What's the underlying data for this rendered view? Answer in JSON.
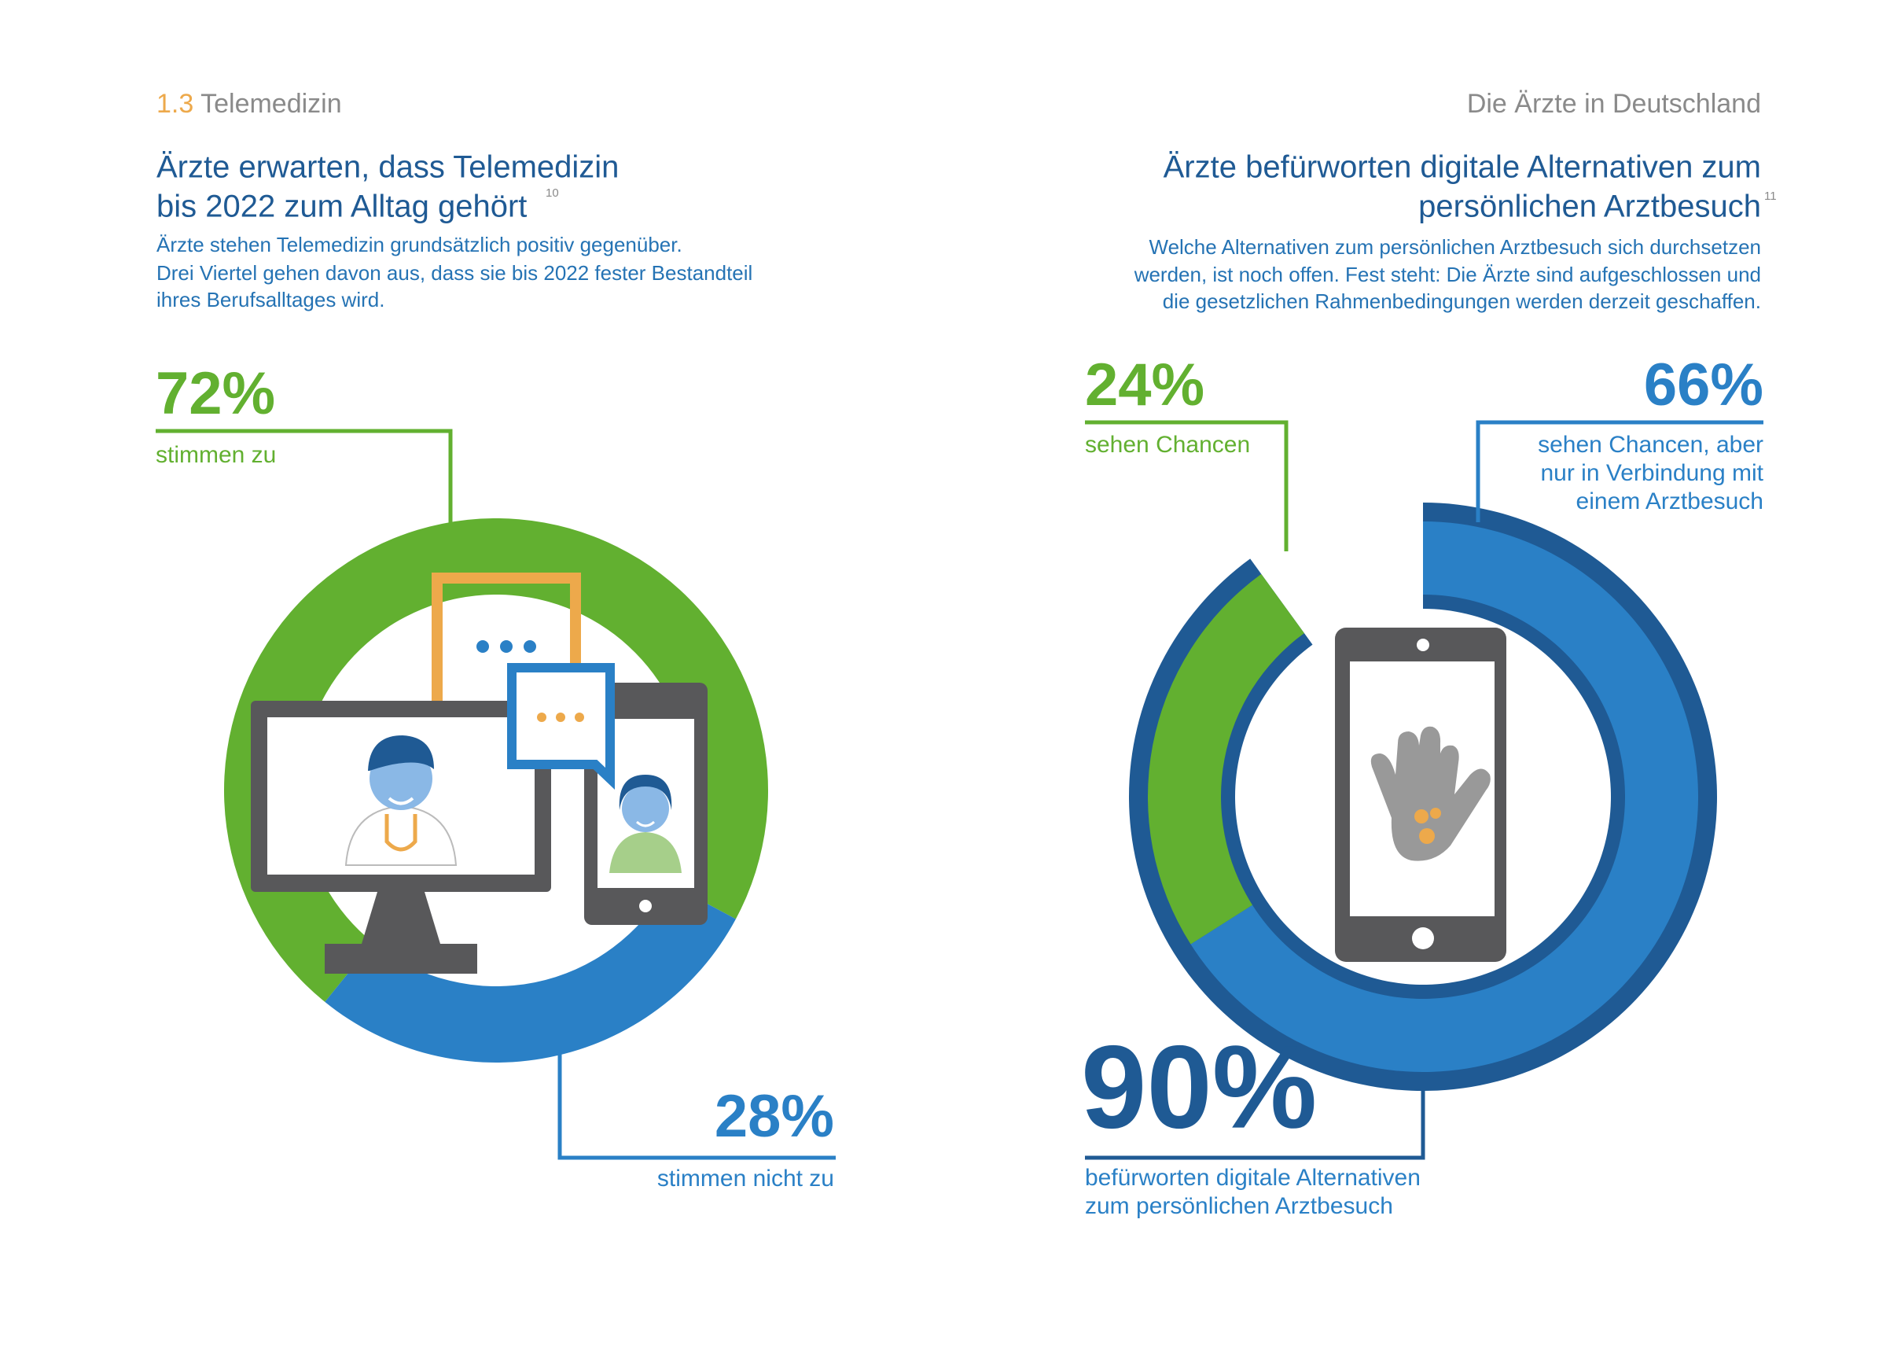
{
  "header": {
    "section_number": "1.3",
    "section": "Telemedizin",
    "right": "Die Ärzte in Deutschland"
  },
  "chart_data": [
    {
      "type": "donut",
      "title": [
        "Ärzte erwarten, dass Telemedizin",
        "bis 2022 zum Alltag gehört"
      ],
      "footnote": "10",
      "subtitle": [
        "Ärzte stehen Telemedizin grundsätzlich positiv gegenüber.",
        "Drei Viertel gehen davon aus, dass sie bis 2022 fester Bestandteil",
        "ihres Berufsalltages wird."
      ],
      "categories": [
        [
          "stimmen zu"
        ],
        [
          "stimmen nicht zu"
        ]
      ],
      "values": [
        72,
        28
      ],
      "value_labels": [
        "72%",
        "28%"
      ],
      "colors": [
        "#62b030",
        "#2a80c6"
      ]
    },
    {
      "type": "donut",
      "title": [
        "Ärzte befürworten digitale Alternativen zum",
        "persönlichen Arztbesuch"
      ],
      "footnote": "11",
      "subtitle": [
        "Welche Alternativen zum persönlichen Arztbesuch sich durchsetzen",
        "werden, ist noch offen. Fest steht: Die Ärzte sind aufgeschlossen und",
        "die gesetzlichen Rahmenbedingungen werden derzeit geschaffen."
      ],
      "categories": [
        [
          "sehen Chancen, aber",
          "nur in Verbindung mit",
          "einem Arztbesuch"
        ],
        [
          "sehen Chancen"
        ]
      ],
      "values": [
        66,
        24
      ],
      "value_labels": [
        "66%",
        "24%"
      ],
      "colors": [
        "#2a80c6",
        "#62b030"
      ],
      "total": {
        "value": 90,
        "value_label": "90%",
        "label": [
          "befürworten digitale Alternativen",
          "zum persönlichen Arztbesuch"
        ],
        "color": "#1f5a94"
      }
    }
  ]
}
